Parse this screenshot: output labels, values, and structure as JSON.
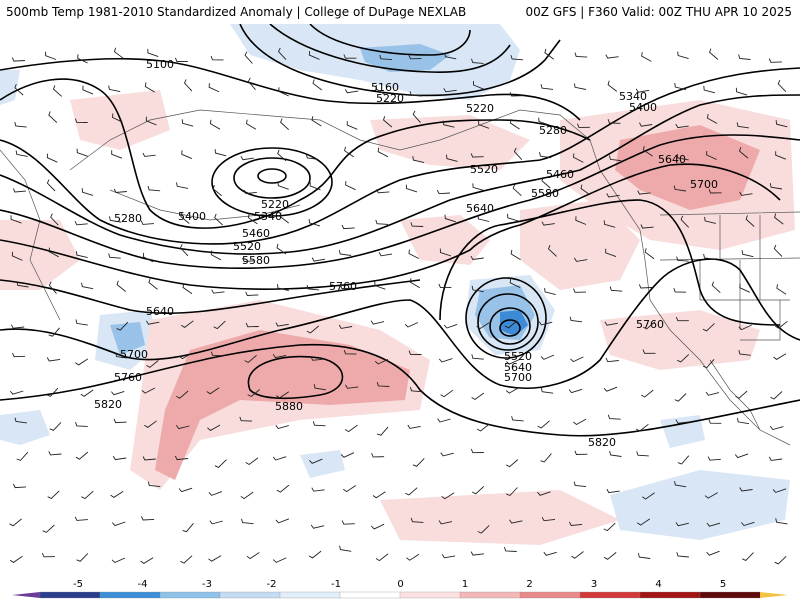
{
  "header": {
    "title_left": "500mb Temp 1981-2010 Standardized Anomaly | College of DuPage NEXLAB",
    "title_right": "00Z GFS | F360 Valid: 00Z THU APR 10 2025"
  },
  "contour_labels": [
    "5100",
    "5160",
    "5220",
    "5220",
    "5220",
    "5280",
    "5280",
    "5340",
    "5340",
    "5400",
    "5400",
    "5460",
    "5460",
    "5520",
    "5520",
    "5520",
    "5580",
    "5580",
    "5640",
    "5640",
    "5640",
    "5640",
    "5700",
    "5700",
    "5700",
    "5760",
    "5760",
    "5760",
    "5820",
    "5820",
    "5880"
  ],
  "legend": {
    "ticks": [
      "-5",
      "-4",
      "-3",
      "-2",
      "-1",
      "0",
      "1",
      "2",
      "3",
      "4",
      "5"
    ],
    "colors": [
      "#6a3d9a",
      "#2b3e8c",
      "#3c8fd6",
      "#8ec0e8",
      "#c4dcf1",
      "#e2eef9",
      "#ffffff",
      "#fbe1e1",
      "#f3b7b7",
      "#e88a8a",
      "#d23a3a",
      "#a31515",
      "#5e0a0a",
      "#f5c242"
    ]
  },
  "colors": {
    "warm_light": "#f9dcdc",
    "warm_mid": "#eeaaaa",
    "cool_light": "#d8e6f5",
    "cool_mid": "#98c2e8",
    "cool_dark": "#3d8bd6"
  }
}
